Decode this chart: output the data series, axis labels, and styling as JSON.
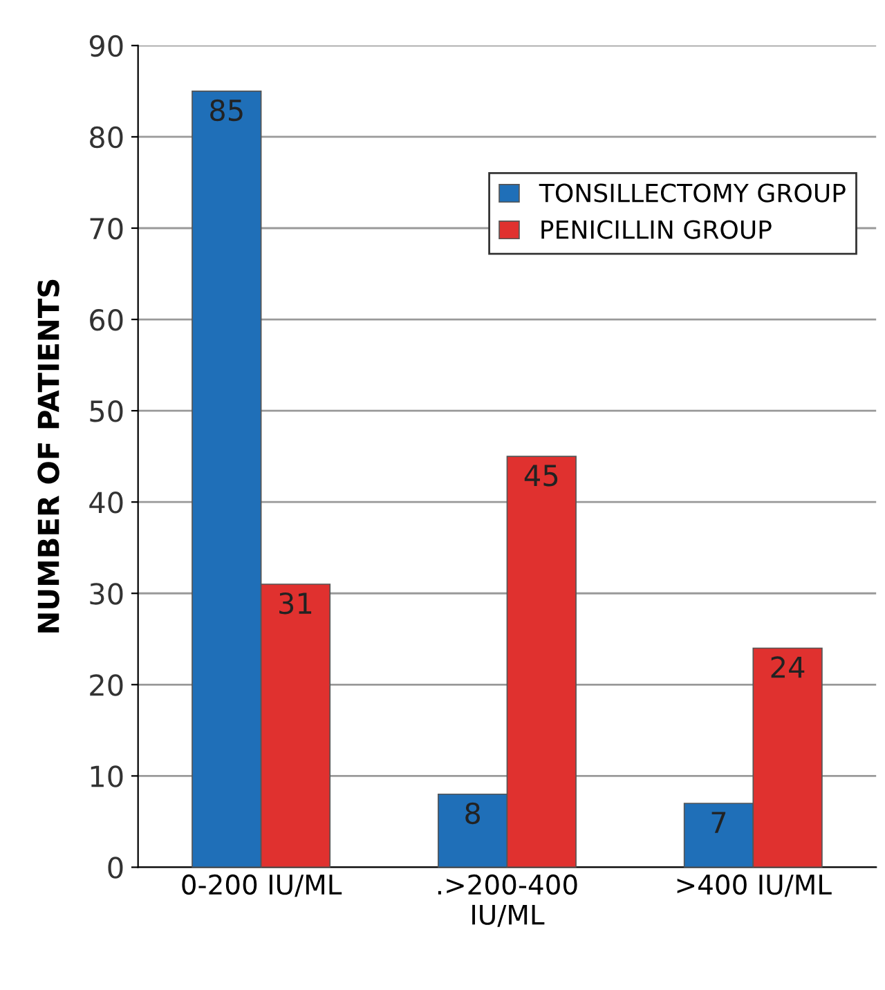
{
  "chart_data": {
    "type": "bar",
    "ylabel": "NUMBER OF PATIENTS",
    "categories": [
      "0-200 IU/ML",
      ".>200-400\nIU/ML",
      ">400 IU/ML"
    ],
    "series": [
      {
        "name": "TONSILLECTOMY GROUP",
        "color": "#1f6fb8",
        "values": [
          85,
          8,
          7
        ]
      },
      {
        "name": "PENICILLIN GROUP",
        "color": "#e0312f",
        "values": [
          31,
          45,
          24
        ]
      }
    ],
    "ylim": [
      0,
      90
    ],
    "yticks": [
      0,
      10,
      20,
      30,
      40,
      50,
      60,
      70,
      80,
      90
    ],
    "grid": "y",
    "legend": "top right",
    "data_labels": true
  }
}
